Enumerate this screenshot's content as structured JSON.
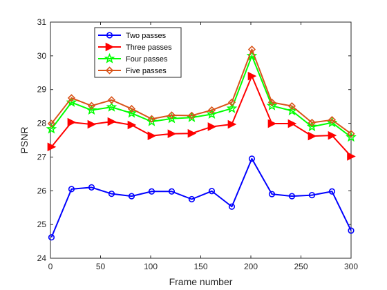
{
  "chart_data": {
    "type": "line",
    "title": "",
    "xlabel": "Frame number",
    "ylabel": "PSNR",
    "xlim": [
      0,
      300
    ],
    "ylim": [
      24,
      31
    ],
    "x_ticks": [
      0,
      50,
      100,
      150,
      200,
      250,
      300
    ],
    "y_ticks": [
      24,
      25,
      26,
      27,
      28,
      29,
      30,
      31
    ],
    "grid": false,
    "legend_position": "top-left",
    "x": [
      1,
      21,
      41,
      61,
      81,
      101,
      121,
      141,
      161,
      181,
      201,
      221,
      241,
      261,
      281,
      300
    ],
    "series": [
      {
        "name": "Two passes",
        "color": "#0000ff",
        "marker": "circle",
        "values": [
          24.62,
          26.05,
          26.1,
          25.91,
          25.84,
          25.98,
          25.98,
          25.75,
          25.99,
          25.53,
          26.95,
          25.9,
          25.84,
          25.87,
          25.98,
          24.82
        ]
      },
      {
        "name": "Three passes",
        "color": "#ff0000",
        "marker": "triangle-right",
        "values": [
          27.3,
          28.03,
          27.97,
          28.05,
          27.95,
          27.63,
          27.69,
          27.7,
          27.9,
          27.97,
          29.4,
          27.99,
          27.99,
          27.62,
          27.64,
          27.02
        ]
      },
      {
        "name": "Four passes",
        "color": "#00ff00",
        "marker": "star",
        "values": [
          27.83,
          28.62,
          28.39,
          28.48,
          28.3,
          28.05,
          28.14,
          28.17,
          28.27,
          28.44,
          30.0,
          28.52,
          28.37,
          27.9,
          28.02,
          27.59
        ]
      },
      {
        "name": "Five passes",
        "color": "#d95319",
        "marker": "diamond",
        "values": [
          27.99,
          28.75,
          28.52,
          28.69,
          28.43,
          28.13,
          28.24,
          28.23,
          28.39,
          28.62,
          30.19,
          28.62,
          28.51,
          28.02,
          28.1,
          27.69
        ]
      }
    ]
  }
}
